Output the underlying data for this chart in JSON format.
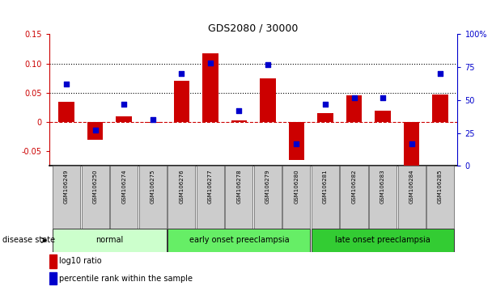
{
  "title": "GDS2080 / 30000",
  "samples": [
    "GSM106249",
    "GSM106250",
    "GSM106274",
    "GSM106275",
    "GSM106276",
    "GSM106277",
    "GSM106278",
    "GSM106279",
    "GSM106280",
    "GSM106281",
    "GSM106282",
    "GSM106283",
    "GSM106284",
    "GSM106285"
  ],
  "log10_ratio": [
    0.035,
    -0.03,
    0.01,
    -0.002,
    0.07,
    0.117,
    0.003,
    0.075,
    -0.065,
    0.015,
    0.045,
    0.02,
    -0.075,
    0.047
  ],
  "percentile_rank": [
    62,
    27,
    47,
    35,
    70,
    78,
    42,
    77,
    17,
    47,
    52,
    52,
    17,
    70
  ],
  "groups": [
    {
      "label": "normal",
      "start": 0,
      "end": 3,
      "color": "#ccffcc"
    },
    {
      "label": "early onset preeclampsia",
      "start": 4,
      "end": 8,
      "color": "#66ee66"
    },
    {
      "label": "late onset preeclampsia",
      "start": 9,
      "end": 13,
      "color": "#33cc33"
    }
  ],
  "ylim_left": [
    -0.075,
    0.15
  ],
  "ylim_right": [
    0,
    100
  ],
  "yticks_left": [
    -0.05,
    0,
    0.05,
    0.1,
    0.15
  ],
  "yticks_right": [
    0,
    25,
    50,
    75,
    100
  ],
  "ytick_labels_left": [
    "-0.05",
    "0",
    "0.05",
    "0.10",
    "0.15"
  ],
  "ytick_labels_right": [
    "0",
    "25",
    "50",
    "75",
    "100%"
  ],
  "bar_color": "#cc0000",
  "dot_color": "#0000cc",
  "zero_line_color": "#cc0000",
  "grid_color": "#000000",
  "legend_bar_label": "log10 ratio",
  "legend_dot_label": "percentile rank within the sample",
  "disease_state_label": "disease state",
  "title_color": "#000000",
  "left_axis_color": "#cc0000",
  "right_axis_color": "#0000cc",
  "sample_box_color": "#cccccc",
  "hgrid_values": [
    0.05,
    0.1
  ],
  "bar_width": 0.55
}
